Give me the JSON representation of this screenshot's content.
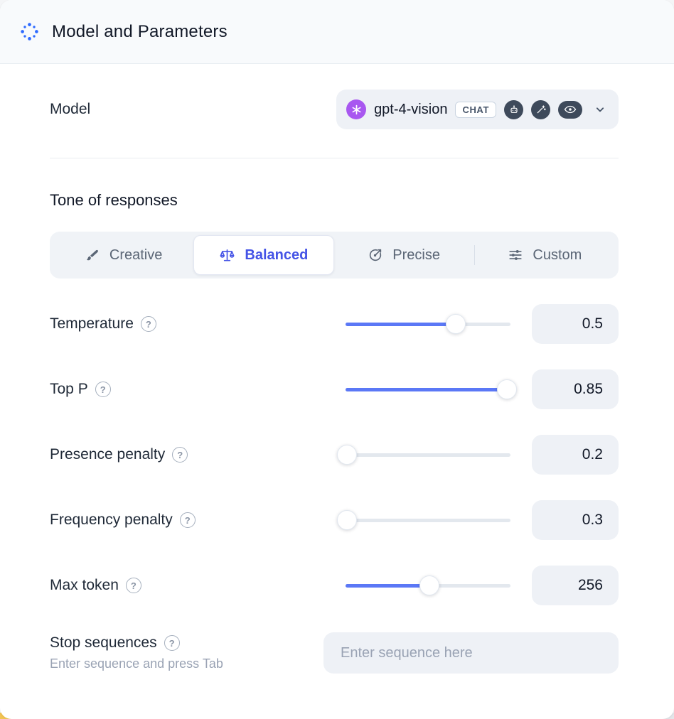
{
  "header": {
    "title": "Model and Parameters"
  },
  "model_row": {
    "label": "Model",
    "selected_model": "gpt-4-vision",
    "badge": "CHAT",
    "capability_icons": [
      "robot-icon",
      "wand-icon",
      "eye-icon"
    ]
  },
  "tone": {
    "heading": "Tone of responses",
    "options": [
      {
        "label": "Creative",
        "icon": "brush-icon",
        "selected": false
      },
      {
        "label": "Balanced",
        "icon": "scales-icon",
        "selected": true
      },
      {
        "label": "Precise",
        "icon": "target-icon",
        "selected": false
      },
      {
        "label": "Custom",
        "icon": "sliders-icon",
        "selected": false
      }
    ]
  },
  "parameters": [
    {
      "label": "Temperature",
      "value": "0.5",
      "percent": 67
    },
    {
      "label": "Top P",
      "value": "0.85",
      "percent": 98
    },
    {
      "label": "Presence penalty",
      "value": "0.2",
      "percent": 1
    },
    {
      "label": "Frequency penalty",
      "value": "0.3",
      "percent": 1
    },
    {
      "label": "Max token",
      "value": "256",
      "percent": 51
    }
  ],
  "stop_sequences": {
    "label": "Stop sequences",
    "hint": "Enter sequence and press Tab",
    "placeholder": "Enter sequence here",
    "value": ""
  },
  "colors": {
    "accent": "#4453e6",
    "slider_fill": "#5b78f6",
    "openai_purple": "#a857f0",
    "header_icon_blue": "#2f6bff",
    "bottom_strip_yellow": "#f2c453"
  }
}
